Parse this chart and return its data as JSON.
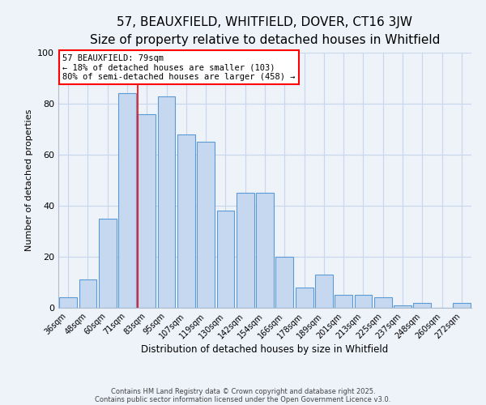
{
  "title": "57, BEAUXFIELD, WHITFIELD, DOVER, CT16 3JW",
  "subtitle": "Size of property relative to detached houses in Whitfield",
  "xlabel": "Distribution of detached houses by size in Whitfield",
  "ylabel": "Number of detached properties",
  "bar_labels": [
    "36sqm",
    "48sqm",
    "60sqm",
    "71sqm",
    "83sqm",
    "95sqm",
    "107sqm",
    "119sqm",
    "130sqm",
    "142sqm",
    "154sqm",
    "166sqm",
    "178sqm",
    "189sqm",
    "201sqm",
    "213sqm",
    "225sqm",
    "237sqm",
    "248sqm",
    "260sqm",
    "272sqm"
  ],
  "bar_values": [
    4,
    11,
    35,
    84,
    76,
    83,
    68,
    65,
    38,
    45,
    45,
    20,
    8,
    13,
    5,
    5,
    4,
    1,
    2,
    0,
    2
  ],
  "bar_color": "#c5d8f0",
  "bar_edge_color": "#5b9bd5",
  "annotation_box_text": "57 BEAUXFIELD: 79sqm\n← 18% of detached houses are smaller (103)\n80% of semi-detached houses are larger (458) →",
  "red_line_bin": 4,
  "background_color": "#eef2f9",
  "grid_color": "#c8d8ec",
  "footer_line1": "Contains HM Land Registry data © Crown copyright and database right 2025.",
  "footer_line2": "Contains public sector information licensed under the Open Government Licence v3.0.",
  "ylim": [
    0,
    100
  ],
  "title_fontsize": 11,
  "subtitle_fontsize": 9.5,
  "xlabel_fontsize": 8.5,
  "ylabel_fontsize": 8
}
